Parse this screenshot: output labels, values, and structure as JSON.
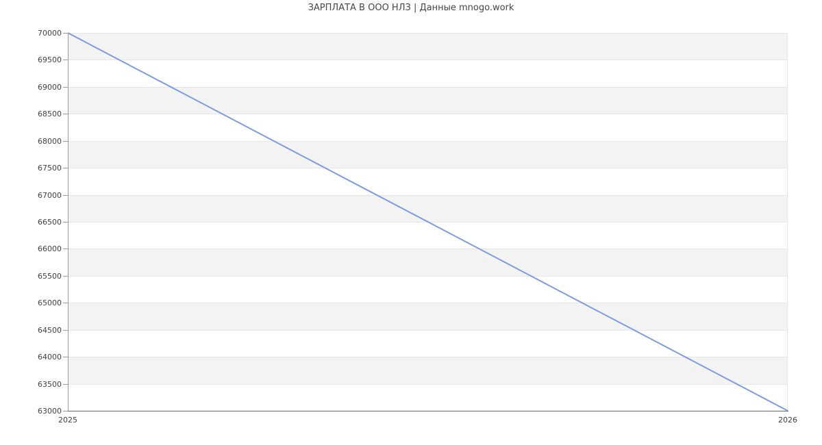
{
  "title": "ЗАРПЛАТА В ООО НЛЗ | Данные mnogo.work",
  "colors": {
    "line": "#7a9ce2",
    "band": "#f3f3f3",
    "gridline": "#e6e6e6",
    "axis": "#9b9b9b",
    "baseline": "#666666",
    "tick_text": "#404040",
    "title_text": "#454545",
    "background": "#ffffff"
  },
  "chart_data": {
    "type": "line",
    "title": "ЗАРПЛАТА В ООО НЛЗ | Данные mnogo.work",
    "categories": [
      "2025",
      "2026"
    ],
    "values": [
      70000,
      63000
    ],
    "xlabel": "",
    "ylabel": "",
    "ylim": [
      63000,
      70000
    ],
    "ytick_step": 500,
    "yticks": [
      63000,
      63500,
      64000,
      64500,
      65000,
      65500,
      66000,
      66500,
      67000,
      67500,
      68000,
      68500,
      69000,
      69500,
      70000
    ],
    "legend": "none",
    "grid": "horizontal gridlines every 500 with alternating gray/white bands, vertical gridline at right edge"
  }
}
